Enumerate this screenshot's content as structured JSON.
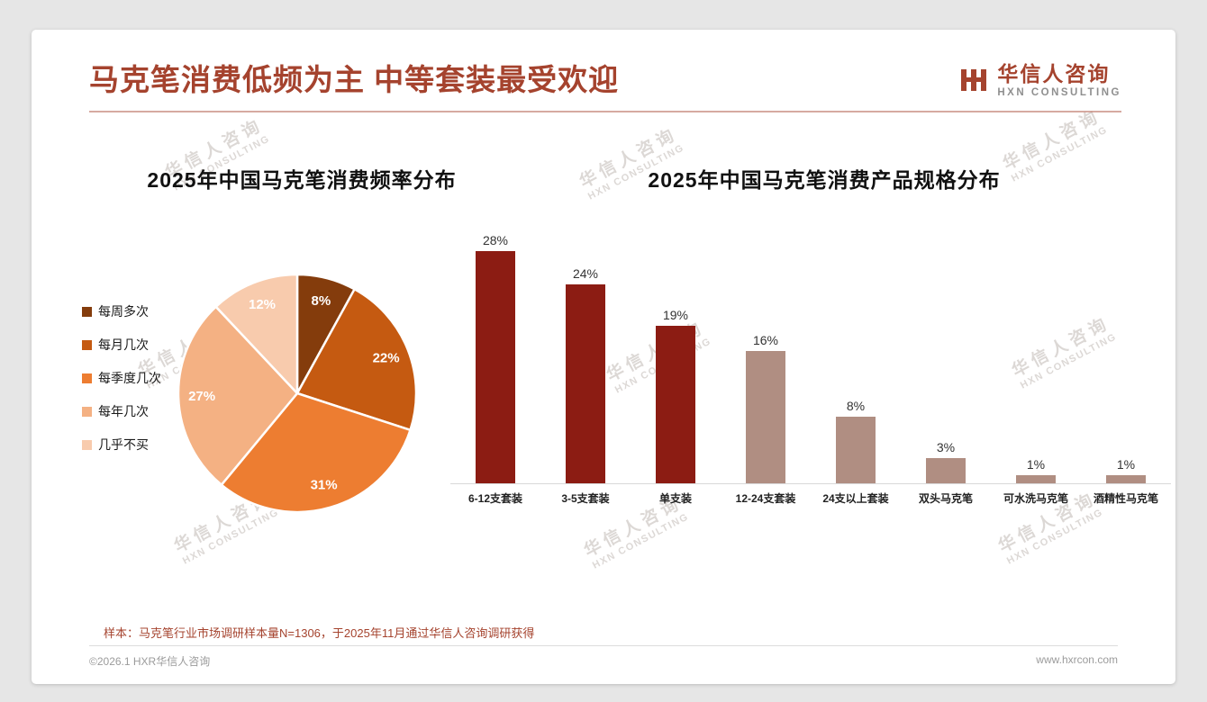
{
  "page": {
    "title": "马克笔消费低频为主 中等套装最受欢迎",
    "logo": {
      "name": "华信人咨询",
      "sub": "HXN CONSULTING"
    },
    "footnote": "样本：马克笔行业市场调研样本量N=1306，于2025年11月通过华信人咨询调研获得",
    "footer_left": "©2026.1 HXR华信人咨询",
    "footer_right": "www.hxrcon.com",
    "watermark": {
      "line1": "华信人咨询",
      "line2": "HXN CONSULTING"
    }
  },
  "colors": {
    "accent": "#A5432E",
    "bar_primary": "#8C1C13",
    "bar_secondary": "#B08E82",
    "divider": "#DCDCDC"
  },
  "chart_data": [
    {
      "type": "pie",
      "title": "2025年中国马克笔消费频率分布",
      "labels": [
        "每周多次",
        "每月几次",
        "每季度几次",
        "每年几次",
        "几乎不买"
      ],
      "values": [
        8,
        22,
        31,
        27,
        12
      ],
      "unit": "%",
      "colors": [
        "#843C0C",
        "#C55A11",
        "#ED7D31",
        "#F4B183",
        "#F8CBAD"
      ],
      "legend_position": "left",
      "start_angle": "top",
      "direction": "clockwise",
      "data_label_color": "#FFFFFF"
    },
    {
      "type": "bar",
      "title": "2025年中国马克笔消费产品规格分布",
      "categories": [
        "6-12支套装",
        "3-5支套装",
        "单支装",
        "12-24支套装",
        "24支以上套装",
        "双头马克笔",
        "可水洗马克笔",
        "酒精性马克笔"
      ],
      "values": [
        28,
        24,
        19,
        16,
        8,
        3,
        1,
        1
      ],
      "unit": "%",
      "bar_colors": [
        "#8C1C13",
        "#8C1C13",
        "#8C1C13",
        "#B08E82",
        "#B08E82",
        "#B08E82",
        "#B08E82",
        "#B08E82"
      ],
      "ylim": [
        0,
        30
      ],
      "data_labels": true,
      "gridlines": false
    }
  ]
}
